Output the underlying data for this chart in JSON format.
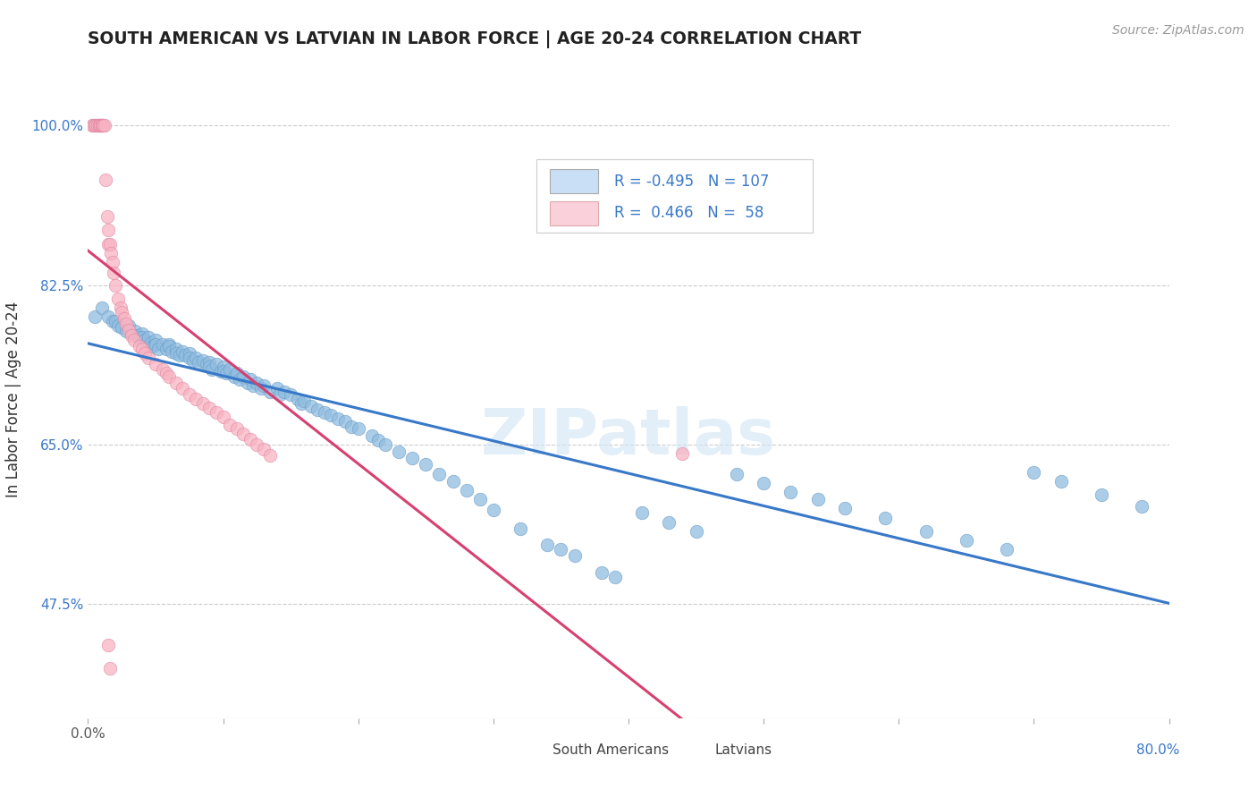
{
  "title": "SOUTH AMERICAN VS LATVIAN IN LABOR FORCE | AGE 20-24 CORRELATION CHART",
  "source": "Source: ZipAtlas.com",
  "ylabel": "In Labor Force | Age 20-24",
  "x_min": 0.0,
  "x_max": 0.8,
  "y_min": 0.35,
  "y_max": 1.05,
  "y_ticks": [
    0.475,
    0.65,
    0.825,
    1.0
  ],
  "y_tick_labels": [
    "47.5%",
    "65.0%",
    "82.5%",
    "100.0%"
  ],
  "x_ticks": [
    0.0,
    0.1,
    0.2,
    0.3,
    0.4,
    0.5,
    0.6,
    0.7,
    0.8
  ],
  "blue_R": -0.495,
  "blue_N": 107,
  "pink_R": 0.466,
  "pink_N": 58,
  "blue_color": "#90bde0",
  "pink_color": "#f7b3c2",
  "blue_line_color": "#3878c8",
  "pink_line_color": "#d84070",
  "legend_blue_face": "#c8dff5",
  "legend_pink_face": "#fad0da",
  "watermark": "ZIPatlas",
  "blue_scatter_x": [
    0.005,
    0.01,
    0.015,
    0.018,
    0.02,
    0.022,
    0.025,
    0.028,
    0.03,
    0.032,
    0.035,
    0.037,
    0.038,
    0.04,
    0.04,
    0.042,
    0.045,
    0.047,
    0.048,
    0.05,
    0.05,
    0.052,
    0.055,
    0.058,
    0.06,
    0.06,
    0.062,
    0.065,
    0.065,
    0.068,
    0.07,
    0.072,
    0.075,
    0.075,
    0.078,
    0.08,
    0.082,
    0.085,
    0.088,
    0.09,
    0.09,
    0.092,
    0.095,
    0.098,
    0.1,
    0.1,
    0.102,
    0.105,
    0.108,
    0.11,
    0.112,
    0.115,
    0.118,
    0.12,
    0.122,
    0.125,
    0.128,
    0.13,
    0.135,
    0.14,
    0.142,
    0.145,
    0.15,
    0.155,
    0.158,
    0.16,
    0.165,
    0.17,
    0.175,
    0.18,
    0.185,
    0.19,
    0.195,
    0.2,
    0.21,
    0.215,
    0.22,
    0.23,
    0.24,
    0.25,
    0.26,
    0.27,
    0.28,
    0.29,
    0.3,
    0.32,
    0.34,
    0.35,
    0.36,
    0.38,
    0.39,
    0.41,
    0.43,
    0.45,
    0.48,
    0.5,
    0.52,
    0.54,
    0.56,
    0.59,
    0.62,
    0.65,
    0.68,
    0.7,
    0.72,
    0.75,
    0.78
  ],
  "blue_scatter_y": [
    0.79,
    0.8,
    0.79,
    0.785,
    0.785,
    0.78,
    0.778,
    0.775,
    0.78,
    0.772,
    0.775,
    0.77,
    0.768,
    0.772,
    0.768,
    0.765,
    0.768,
    0.762,
    0.758,
    0.765,
    0.76,
    0.755,
    0.76,
    0.755,
    0.76,
    0.758,
    0.752,
    0.755,
    0.75,
    0.748,
    0.752,
    0.748,
    0.75,
    0.745,
    0.742,
    0.745,
    0.74,
    0.742,
    0.738,
    0.74,
    0.735,
    0.732,
    0.738,
    0.73,
    0.735,
    0.73,
    0.728,
    0.732,
    0.725,
    0.728,
    0.722,
    0.725,
    0.718,
    0.722,
    0.715,
    0.718,
    0.712,
    0.715,
    0.708,
    0.712,
    0.705,
    0.708,
    0.705,
    0.7,
    0.695,
    0.698,
    0.692,
    0.688,
    0.685,
    0.682,
    0.678,
    0.675,
    0.67,
    0.668,
    0.66,
    0.655,
    0.65,
    0.642,
    0.635,
    0.628,
    0.618,
    0.61,
    0.6,
    0.59,
    0.578,
    0.558,
    0.54,
    0.535,
    0.528,
    0.51,
    0.505,
    0.575,
    0.565,
    0.555,
    0.618,
    0.608,
    0.598,
    0.59,
    0.58,
    0.57,
    0.555,
    0.545,
    0.535,
    0.62,
    0.61,
    0.595,
    0.582
  ],
  "pink_scatter_x": [
    0.003,
    0.004,
    0.005,
    0.006,
    0.007,
    0.007,
    0.008,
    0.008,
    0.009,
    0.009,
    0.01,
    0.01,
    0.011,
    0.011,
    0.012,
    0.013,
    0.014,
    0.015,
    0.015,
    0.016,
    0.017,
    0.018,
    0.019,
    0.02,
    0.022,
    0.024,
    0.025,
    0.027,
    0.028,
    0.03,
    0.032,
    0.034,
    0.038,
    0.04,
    0.042,
    0.045,
    0.05,
    0.055,
    0.058,
    0.06,
    0.065,
    0.07,
    0.075,
    0.08,
    0.085,
    0.09,
    0.095,
    0.1,
    0.105,
    0.11,
    0.115,
    0.12,
    0.125,
    0.13,
    0.135,
    0.015,
    0.016,
    0.44
  ],
  "pink_scatter_y": [
    1.0,
    1.0,
    1.0,
    1.0,
    1.0,
    1.0,
    1.0,
    1.0,
    1.0,
    1.0,
    1.0,
    1.0,
    1.0,
    1.0,
    1.0,
    0.94,
    0.9,
    0.87,
    0.885,
    0.87,
    0.86,
    0.85,
    0.838,
    0.825,
    0.81,
    0.8,
    0.795,
    0.788,
    0.782,
    0.776,
    0.77,
    0.765,
    0.758,
    0.755,
    0.75,
    0.745,
    0.738,
    0.732,
    0.728,
    0.725,
    0.718,
    0.712,
    0.705,
    0.7,
    0.695,
    0.69,
    0.685,
    0.68,
    0.672,
    0.668,
    0.662,
    0.656,
    0.65,
    0.645,
    0.638,
    0.43,
    0.405,
    0.64
  ]
}
